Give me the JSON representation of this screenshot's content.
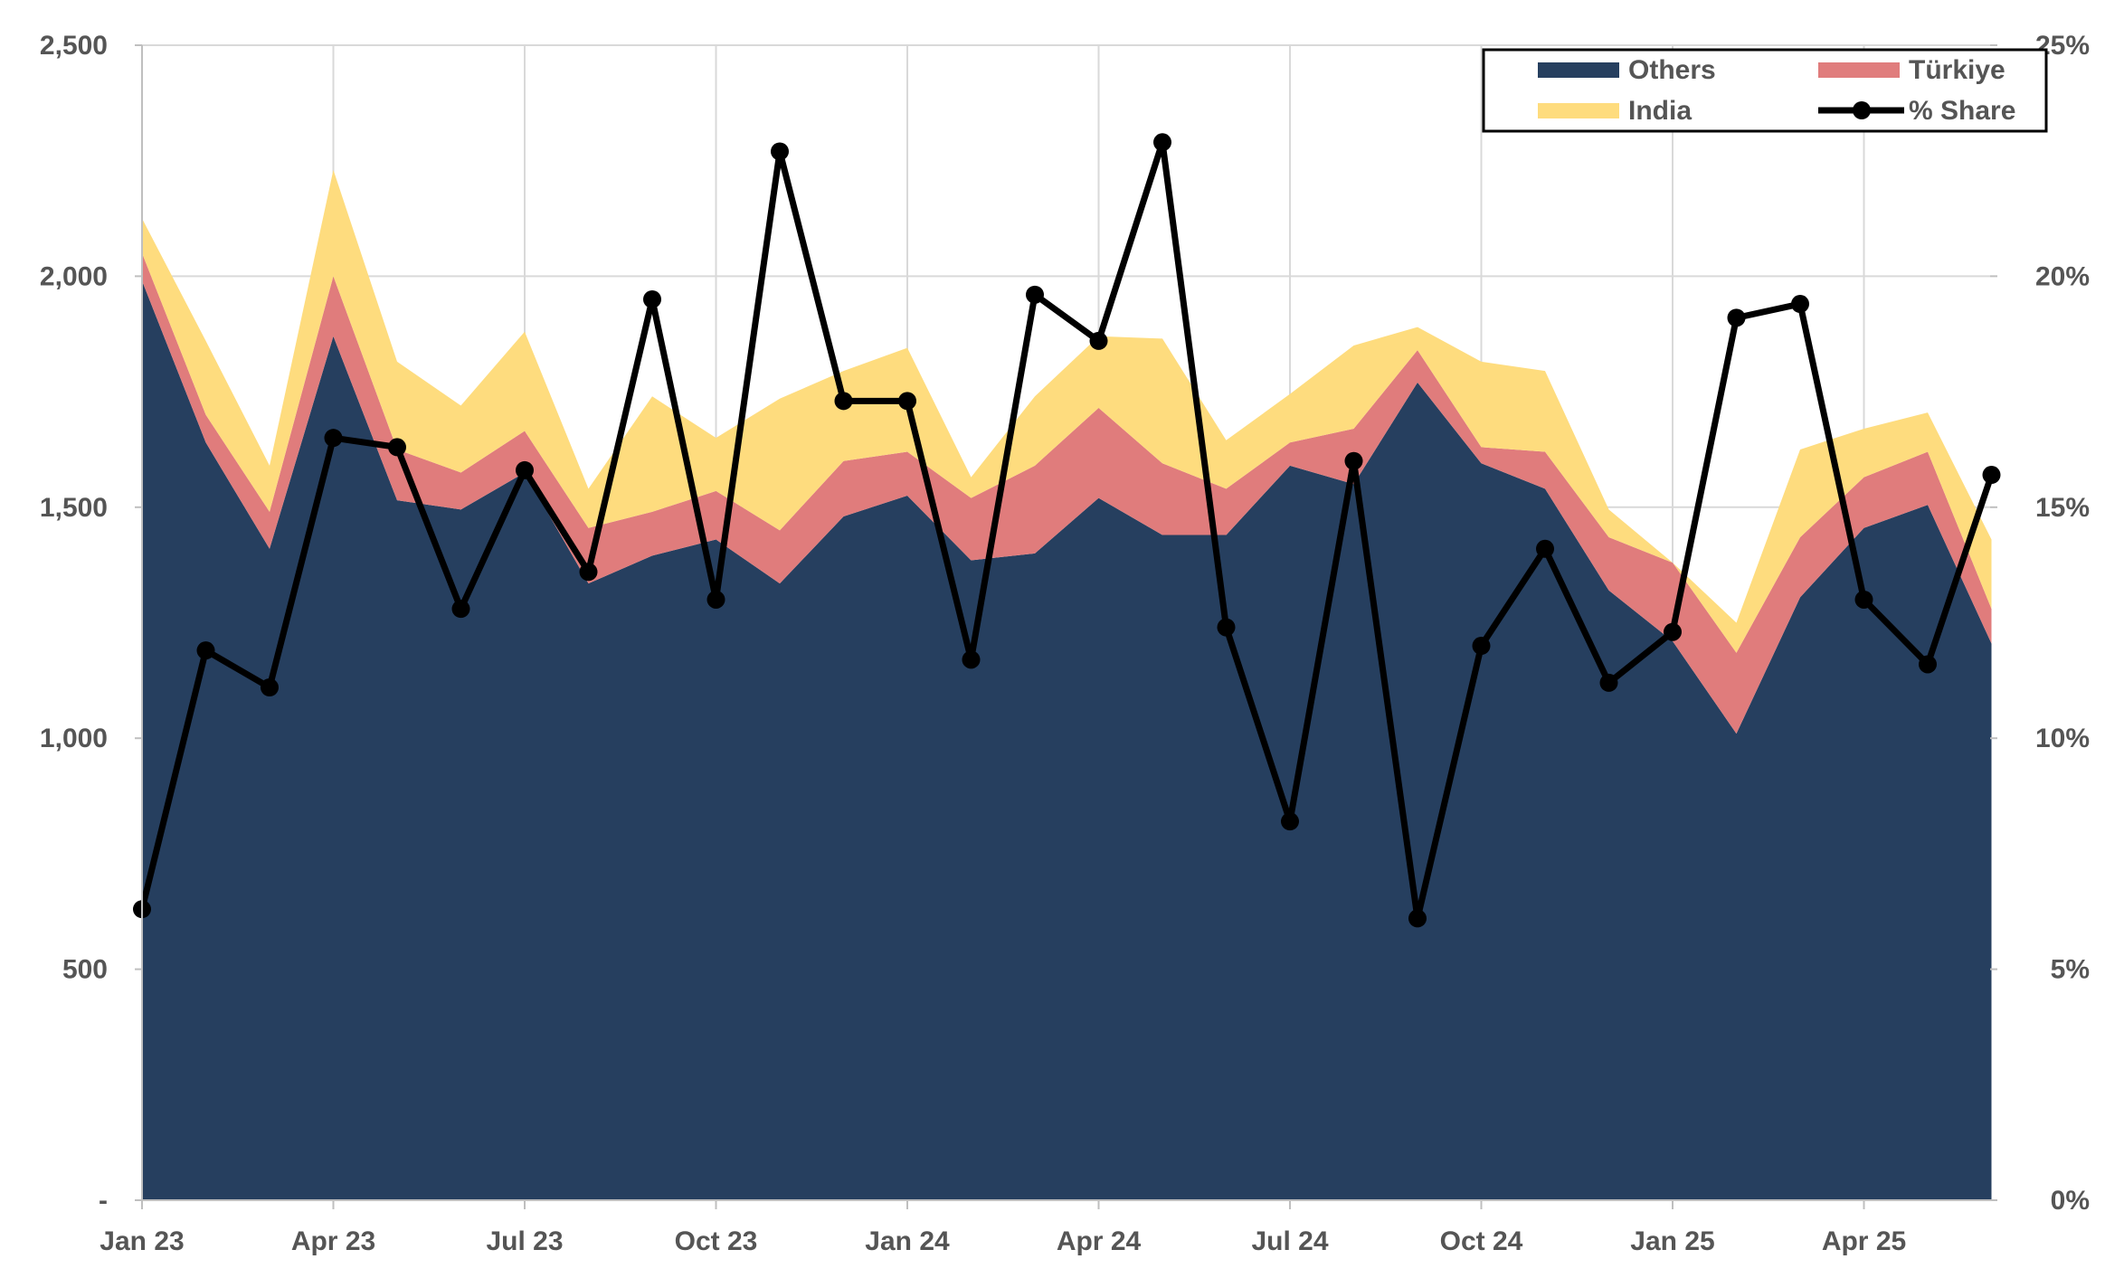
{
  "chart_data": {
    "type": "area",
    "x": [
      "Jan 23",
      "Feb 23",
      "Mar 23",
      "Apr 23",
      "May 23",
      "Jun 23",
      "Jul 23",
      "Aug 23",
      "Sep 23",
      "Oct 23",
      "Nov 23",
      "Dec 23",
      "Jan 24",
      "Feb 24",
      "Mar 24",
      "Apr 24",
      "May 24",
      "Jun 24",
      "Jul 24",
      "Aug 24",
      "Sep 24",
      "Oct 24",
      "Nov 24",
      "Dec 24",
      "Jan 25",
      "Feb 25",
      "Mar 25",
      "Apr 25",
      "May 25",
      "Jun 25"
    ],
    "x_tick_labels": [
      "Jan 23",
      "Apr 23",
      "Jul 23",
      "Oct 23",
      "Jan 24",
      "Apr 24",
      "Jul 24",
      "Oct 24",
      "Jan 25",
      "Apr 25"
    ],
    "y_left": {
      "ylim": [
        0,
        2500
      ],
      "ticks": [
        0,
        500,
        1000,
        1500,
        2000,
        2500
      ],
      "tick_labels": [
        "-",
        "500",
        "1,000",
        "1,500",
        "2,000",
        "2,500"
      ]
    },
    "y_right": {
      "ylim": [
        0,
        25
      ],
      "ticks": [
        0,
        5,
        10,
        15,
        20,
        25
      ],
      "tick_labels": [
        "0%",
        "5%",
        "10%",
        "15%",
        "20%",
        "25%"
      ]
    },
    "grid": true,
    "legend_position": "top-right",
    "stacked": true,
    "series": [
      {
        "name": "Others",
        "type": "area",
        "color": "#263F5F",
        "values": [
          1990,
          1640,
          1410,
          1870,
          1515,
          1495,
          1575,
          1335,
          1395,
          1430,
          1335,
          1480,
          1525,
          1385,
          1400,
          1520,
          1440,
          1440,
          1590,
          1550,
          1770,
          1595,
          1540,
          1320,
          1210,
          1010,
          1305,
          1455,
          1505,
          1205
        ]
      },
      {
        "name": "Türkiye",
        "type": "area",
        "color": "#E07C7C",
        "values": [
          60,
          60,
          80,
          130,
          110,
          80,
          90,
          120,
          95,
          105,
          115,
          120,
          95,
          135,
          190,
          195,
          155,
          100,
          50,
          120,
          70,
          35,
          80,
          115,
          170,
          175,
          130,
          110,
          115,
          75
        ]
      },
      {
        "name": "India",
        "type": "area",
        "color": "#FEDC7E",
        "values": [
          75,
          160,
          100,
          230,
          190,
          145,
          215,
          85,
          250,
          115,
          285,
          195,
          225,
          45,
          150,
          155,
          270,
          105,
          105,
          180,
          50,
          185,
          175,
          60,
          0,
          65,
          190,
          105,
          85,
          150
        ]
      },
      {
        "name": "% Share",
        "type": "line",
        "axis": "right",
        "color": "#000000",
        "values": [
          6.3,
          11.9,
          11.1,
          16.5,
          16.3,
          12.8,
          15.8,
          13.6,
          19.5,
          13.0,
          22.7,
          17.3,
          17.3,
          11.7,
          19.6,
          18.6,
          22.9,
          12.4,
          8.2,
          16.0,
          6.1,
          12.0,
          14.1,
          11.2,
          12.3,
          19.1,
          19.4,
          13.0,
          11.6,
          15.7
        ]
      }
    ]
  }
}
